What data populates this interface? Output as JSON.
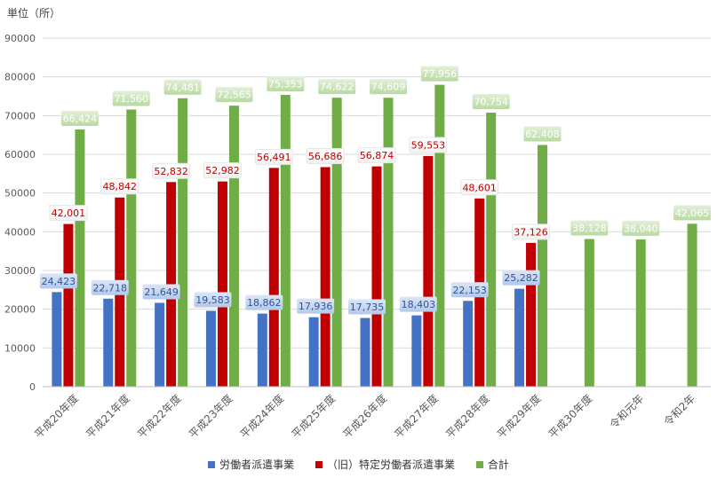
{
  "unit_label": "単位（所）",
  "colors": {
    "haken": "#4472C4",
    "tokutei": "#C00000",
    "total": "#70AD47",
    "grid": "#d9d9d9",
    "axis_text": "#595959"
  },
  "chart_data": {
    "type": "bar",
    "title": "",
    "ylabel": "単位（所）",
    "ylim": [
      0,
      90000
    ],
    "yticks": [
      "0",
      "10000",
      "20000",
      "30000",
      "40000",
      "50000",
      "60000",
      "70000",
      "80000",
      "90000"
    ],
    "grid": true,
    "legend_position": "bottom",
    "categories": [
      "平成20年度",
      "平成21年度",
      "平成22年度",
      "平成23年度",
      "平成24年度",
      "平成25年度",
      "平成26年度",
      "平成27年度",
      "平成28年度",
      "平成29年度",
      "平成30年度",
      "令和元年",
      "令和2年"
    ],
    "series": [
      {
        "name": "労働者派遣事業",
        "values": [
          24423,
          22718,
          21649,
          19583,
          18862,
          17936,
          17735,
          18403,
          22153,
          25282,
          null,
          null,
          null
        ],
        "labels": [
          "24,423",
          "22,718",
          "21,649",
          "19,583",
          "18,862",
          "17,936",
          "17,735",
          "18,403",
          "22,153",
          "25,282",
          "",
          "",
          ""
        ]
      },
      {
        "name": "（旧）特定労働者派遣事業",
        "values": [
          42001,
          48842,
          52832,
          52982,
          56491,
          56686,
          56874,
          59553,
          48601,
          37126,
          null,
          null,
          null
        ],
        "labels": [
          "42,001",
          "48,842",
          "52,832",
          "52,982",
          "56,491",
          "56,686",
          "56,874",
          "59,553",
          "48,601",
          "37,126",
          "",
          "",
          ""
        ]
      },
      {
        "name": "合計",
        "values": [
          66424,
          71560,
          74481,
          72565,
          75353,
          74622,
          74609,
          77956,
          70754,
          62408,
          38128,
          38040,
          42065
        ],
        "labels": [
          "66,424",
          "71,560",
          "74,481",
          "72,565",
          "75,353",
          "74,622",
          "74,609",
          "77,956",
          "70,754",
          "62,408",
          "38,128",
          "38,040",
          "42,065"
        ]
      }
    ]
  }
}
